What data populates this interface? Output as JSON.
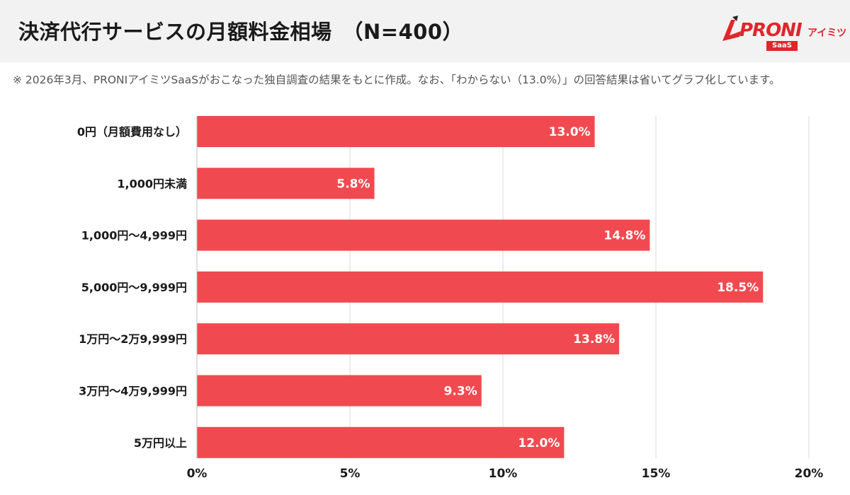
{
  "header": {
    "title": "決済代行サービスの月額料金相場　（N=400）"
  },
  "logo": {
    "brand": "PRONI",
    "sub": "アイミツ",
    "badge": "SaaS"
  },
  "note": "※ 2026年3月、PRONIアイミツSaaSがおこなった独自調査の結果をもとに作成。なお、「わからない（13.0%）」の回答結果は省いてグラフ化しています。",
  "colors": {
    "bar": "#f04a50",
    "header_bg": "#f2f2f2",
    "grid": "#d9d9d9",
    "brand": "#e0262b"
  },
  "chart_data": {
    "type": "bar",
    "orientation": "horizontal",
    "categories": [
      "0円（月額費用なし）",
      "1,000円未満",
      "1,000円〜4,999円",
      "5,000円〜9,999円",
      "1万円〜2万9,999円",
      "3万円〜4万9,999円",
      "5万円以上"
    ],
    "values": [
      13.0,
      5.8,
      14.8,
      18.5,
      13.8,
      9.3,
      12.0
    ],
    "value_labels": [
      "13.0%",
      "5.8%",
      "14.8%",
      "18.5%",
      "13.8%",
      "9.3%",
      "12.0%"
    ],
    "xlim": [
      0,
      20
    ],
    "x_ticks": [
      0,
      5,
      10,
      15,
      20
    ],
    "x_tick_labels": [
      "0%",
      "5%",
      "10%",
      "15%",
      "20%"
    ],
    "grid": true
  }
}
